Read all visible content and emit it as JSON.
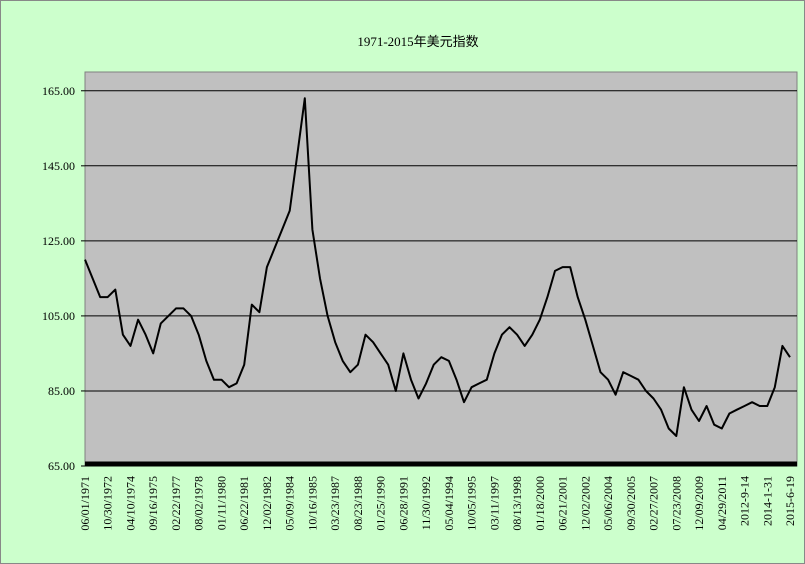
{
  "chart_data": {
    "type": "line",
    "title": "1971-2015年美元指数",
    "categories": [
      "06/01/1971",
      null,
      null,
      "10/30/1972",
      null,
      null,
      "04/10/1974",
      null,
      null,
      "09/16/1975",
      null,
      null,
      "02/22/1977",
      null,
      null,
      "08/02/1978",
      null,
      null,
      "01/11/1980",
      null,
      null,
      "06/22/1981",
      null,
      null,
      "12/02/1982",
      null,
      null,
      "05/09/1984",
      null,
      null,
      "10/16/1985",
      null,
      null,
      "03/23/1987",
      null,
      null,
      "08/23/1988",
      null,
      null,
      "01/25/1990",
      null,
      null,
      "06/28/1991",
      null,
      null,
      "11/30/1992",
      null,
      null,
      "05/04/1994",
      null,
      null,
      "10/05/1995",
      null,
      null,
      "03/11/1997",
      null,
      null,
      "08/13/1998",
      null,
      null,
      "01/18/2000",
      null,
      null,
      "06/21/2001",
      null,
      null,
      "12/02/2002",
      null,
      null,
      "05/06/2004",
      null,
      null,
      "09/30/2005",
      null,
      null,
      "02/27/2007",
      null,
      null,
      "07/23/2008",
      null,
      null,
      "12/09/2009",
      null,
      null,
      "04/29/2011",
      null,
      null,
      "2012-9-14",
      null,
      null,
      "2014-1-31",
      null,
      null,
      "2015-6-19"
    ],
    "values": [
      120,
      115,
      110,
      110,
      112,
      100,
      97,
      104,
      100,
      95,
      103,
      105,
      107,
      107,
      105,
      100,
      93,
      88,
      88,
      86,
      87,
      92,
      108,
      106,
      118,
      123,
      128,
      133,
      148,
      163,
      128,
      115,
      105,
      98,
      93,
      90,
      92,
      100,
      98,
      95,
      92,
      85,
      95,
      88,
      83,
      87,
      92,
      94,
      93,
      88,
      82,
      86,
      87,
      88,
      95,
      100,
      102,
      100,
      97,
      100,
      104,
      110,
      117,
      118,
      118,
      110,
      104,
      97,
      90,
      88,
      84,
      90,
      89,
      88,
      85,
      83,
      80,
      75,
      73,
      86,
      80,
      77,
      81,
      76,
      75,
      79,
      80,
      81,
      82,
      81,
      81,
      86,
      97,
      94
    ],
    "color": "#000000",
    "ylim": [
      65,
      170
    ],
    "yticks": [
      {
        "value": 65,
        "label": "65.00"
      },
      {
        "value": 85,
        "label": "85.00"
      },
      {
        "value": 105,
        "label": "105.00"
      },
      {
        "value": 125,
        "label": "125.00"
      },
      {
        "value": 145,
        "label": "145.00"
      },
      {
        "value": 165,
        "label": "165.00"
      }
    ],
    "grid": true
  }
}
